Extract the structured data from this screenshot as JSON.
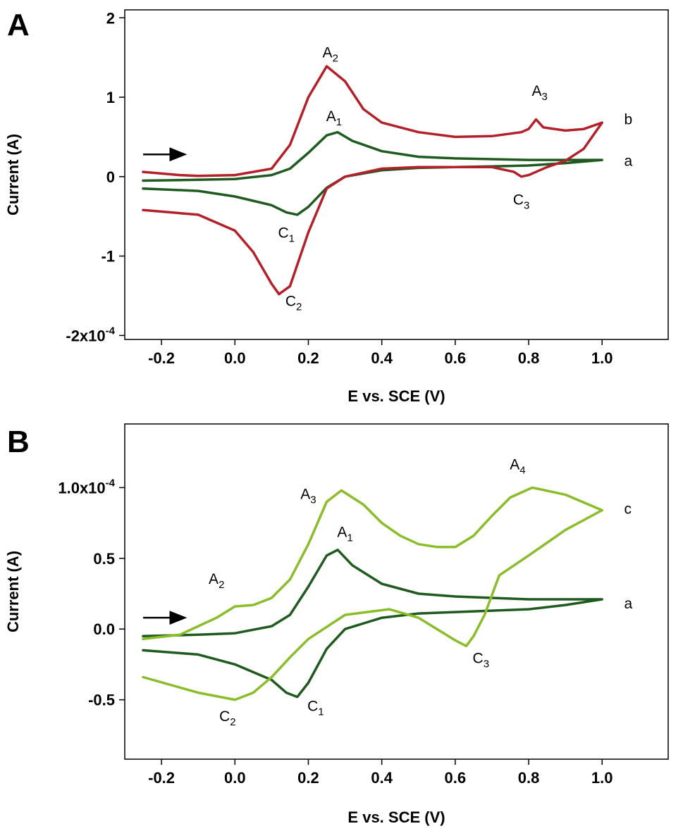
{
  "chart_data": [
    {
      "type": "line",
      "panel_label": "A",
      "xlabel": "E vs. SCE (V)",
      "ylabel": "Current (A)",
      "xlim": [
        -0.3,
        1.18
      ],
      "ylim": [
        -2.05,
        2.1
      ],
      "x_ticks": [
        {
          "value": -0.2,
          "label": "-0.2"
        },
        {
          "value": 0.0,
          "label": "0.0"
        },
        {
          "value": 0.2,
          "label": "0.2"
        },
        {
          "value": 0.4,
          "label": "0.4"
        },
        {
          "value": 0.6,
          "label": "0.6"
        },
        {
          "value": 0.8,
          "label": "0.8"
        },
        {
          "value": 1.0,
          "label": "1.0"
        }
      ],
      "y_ticks": [
        {
          "value": 2,
          "label": "2"
        },
        {
          "value": 1,
          "label": "1"
        },
        {
          "value": 0,
          "label": "0"
        },
        {
          "value": -1,
          "label": "-1"
        },
        {
          "value": -2,
          "label": "-2x10",
          "exponent": "-4"
        }
      ],
      "arrow": {
        "x_start": -0.25,
        "x_end": -0.14,
        "y": 0.28
      },
      "series": [
        {
          "name": "a",
          "color": "#1f5a1f",
          "x": [
            -0.25,
            -0.1,
            0.0,
            0.1,
            0.15,
            0.2,
            0.25,
            0.28,
            0.32,
            0.4,
            0.5,
            0.6,
            0.7,
            0.8,
            0.9,
            1.0,
            1.0,
            0.9,
            0.8,
            0.7,
            0.6,
            0.5,
            0.4,
            0.3,
            0.25,
            0.2,
            0.17,
            0.14,
            0.1,
            0.0,
            -0.1,
            -0.25
          ],
          "y": [
            -0.05,
            -0.04,
            -0.03,
            0.02,
            0.1,
            0.3,
            0.52,
            0.56,
            0.45,
            0.32,
            0.25,
            0.23,
            0.22,
            0.21,
            0.21,
            0.21,
            0.21,
            0.17,
            0.14,
            0.13,
            0.12,
            0.11,
            0.08,
            0.0,
            -0.14,
            -0.38,
            -0.48,
            -0.45,
            -0.36,
            -0.25,
            -0.18,
            -0.15
          ]
        },
        {
          "name": "b",
          "color": "#b3202a",
          "x": [
            -0.25,
            -0.15,
            -0.1,
            0.0,
            0.1,
            0.15,
            0.2,
            0.25,
            0.3,
            0.35,
            0.4,
            0.5,
            0.6,
            0.7,
            0.78,
            0.8,
            0.82,
            0.84,
            0.9,
            0.95,
            1.0,
            1.0,
            0.95,
            0.9,
            0.85,
            0.8,
            0.78,
            0.76,
            0.7,
            0.6,
            0.5,
            0.4,
            0.3,
            0.25,
            0.2,
            0.15,
            0.12,
            0.1,
            0.05,
            0.0,
            -0.1,
            -0.25
          ],
          "y": [
            0.06,
            0.02,
            0.01,
            0.02,
            0.1,
            0.4,
            1.0,
            1.39,
            1.2,
            0.85,
            0.68,
            0.56,
            0.5,
            0.51,
            0.56,
            0.6,
            0.72,
            0.62,
            0.58,
            0.6,
            0.68,
            0.68,
            0.35,
            0.2,
            0.12,
            0.02,
            0.0,
            0.06,
            0.12,
            0.12,
            0.12,
            0.1,
            0.0,
            -0.15,
            -0.7,
            -1.38,
            -1.48,
            -1.35,
            -0.95,
            -0.68,
            -0.48,
            -0.42
          ]
        }
      ],
      "curve_labels": [
        {
          "text": "b",
          "x": 1.06,
          "y": 0.72
        },
        {
          "text": "a",
          "x": 1.06,
          "y": 0.2
        }
      ],
      "peak_labels": [
        {
          "text": "A",
          "sub": "2",
          "x": 0.26,
          "y": 1.5
        },
        {
          "text": "A",
          "sub": "1",
          "x": 0.27,
          "y": 0.7
        },
        {
          "text": "A",
          "sub": "3",
          "x": 0.83,
          "y": 1.02
        },
        {
          "text": "C",
          "sub": "1",
          "x": 0.14,
          "y": -0.77
        },
        {
          "text": "C",
          "sub": "2",
          "x": 0.16,
          "y": -1.63
        },
        {
          "text": "C",
          "sub": "3",
          "x": 0.78,
          "y": -0.35
        }
      ]
    },
    {
      "type": "line",
      "panel_label": "B",
      "xlabel": "E vs. SCE (V)",
      "ylabel": "Current (A)",
      "xlim": [
        -0.3,
        1.18
      ],
      "ylim": [
        -0.92,
        1.45
      ],
      "x_ticks": [
        {
          "value": -0.2,
          "label": "-0.2"
        },
        {
          "value": 0.0,
          "label": "0.0"
        },
        {
          "value": 0.2,
          "label": "0.2"
        },
        {
          "value": 0.4,
          "label": "0.4"
        },
        {
          "value": 0.6,
          "label": "0.6"
        },
        {
          "value": 0.8,
          "label": "0.8"
        },
        {
          "value": 1.0,
          "label": "1.0"
        }
      ],
      "y_ticks": [
        {
          "value": 1.0,
          "label": "1.0x10",
          "exponent": "-4"
        },
        {
          "value": 0.5,
          "label": "0.5"
        },
        {
          "value": 0.0,
          "label": "0.0"
        },
        {
          "value": -0.5,
          "label": "-0.5"
        }
      ],
      "arrow": {
        "x_start": -0.25,
        "x_end": -0.14,
        "y": 0.08
      },
      "series": [
        {
          "name": "a",
          "color": "#1f5a1f",
          "x": [
            -0.25,
            -0.1,
            0.0,
            0.1,
            0.15,
            0.2,
            0.25,
            0.28,
            0.32,
            0.4,
            0.5,
            0.6,
            0.7,
            0.8,
            0.9,
            1.0,
            1.0,
            0.9,
            0.8,
            0.7,
            0.6,
            0.5,
            0.4,
            0.3,
            0.25,
            0.2,
            0.17,
            0.14,
            0.1,
            0.0,
            -0.1,
            -0.25
          ],
          "y": [
            -0.05,
            -0.04,
            -0.03,
            0.02,
            0.1,
            0.3,
            0.52,
            0.56,
            0.45,
            0.32,
            0.25,
            0.23,
            0.22,
            0.21,
            0.21,
            0.21,
            0.21,
            0.17,
            0.14,
            0.13,
            0.12,
            0.11,
            0.08,
            0.0,
            -0.14,
            -0.38,
            -0.48,
            -0.45,
            -0.36,
            -0.25,
            -0.18,
            -0.15
          ]
        },
        {
          "name": "c",
          "color": "#8bbd2a",
          "x": [
            -0.25,
            -0.15,
            -0.05,
            0.0,
            0.05,
            0.1,
            0.15,
            0.2,
            0.25,
            0.29,
            0.35,
            0.4,
            0.45,
            0.5,
            0.55,
            0.6,
            0.65,
            0.7,
            0.75,
            0.81,
            0.9,
            1.0,
            1.0,
            0.9,
            0.8,
            0.72,
            0.68,
            0.65,
            0.63,
            0.6,
            0.55,
            0.5,
            0.42,
            0.3,
            0.2,
            0.15,
            0.1,
            0.05,
            0.0,
            -0.1,
            -0.25
          ],
          "y": [
            -0.07,
            -0.04,
            0.08,
            0.16,
            0.17,
            0.22,
            0.35,
            0.6,
            0.9,
            0.98,
            0.88,
            0.75,
            0.66,
            0.6,
            0.58,
            0.58,
            0.66,
            0.8,
            0.93,
            1.0,
            0.95,
            0.84,
            0.84,
            0.7,
            0.52,
            0.38,
            0.1,
            -0.05,
            -0.12,
            -0.08,
            0.0,
            0.08,
            0.14,
            0.1,
            -0.07,
            -0.2,
            -0.34,
            -0.45,
            -0.5,
            -0.45,
            -0.34
          ]
        }
      ],
      "curve_labels": [
        {
          "text": "c",
          "x": 1.06,
          "y": 0.85
        },
        {
          "text": "a",
          "x": 1.06,
          "y": 0.18
        }
      ],
      "peak_labels": [
        {
          "text": "A",
          "sub": "3",
          "x": 0.2,
          "y": 0.92
        },
        {
          "text": "A",
          "sub": "4",
          "x": 0.77,
          "y": 1.13
        },
        {
          "text": "A",
          "sub": "1",
          "x": 0.3,
          "y": 0.65
        },
        {
          "text": "A",
          "sub": "2",
          "x": -0.05,
          "y": 0.32
        },
        {
          "text": "C",
          "sub": "1",
          "x": 0.22,
          "y": -0.58
        },
        {
          "text": "C",
          "sub": "2",
          "x": -0.02,
          "y": -0.65
        },
        {
          "text": "C",
          "sub": "3",
          "x": 0.67,
          "y": -0.24
        }
      ]
    }
  ]
}
